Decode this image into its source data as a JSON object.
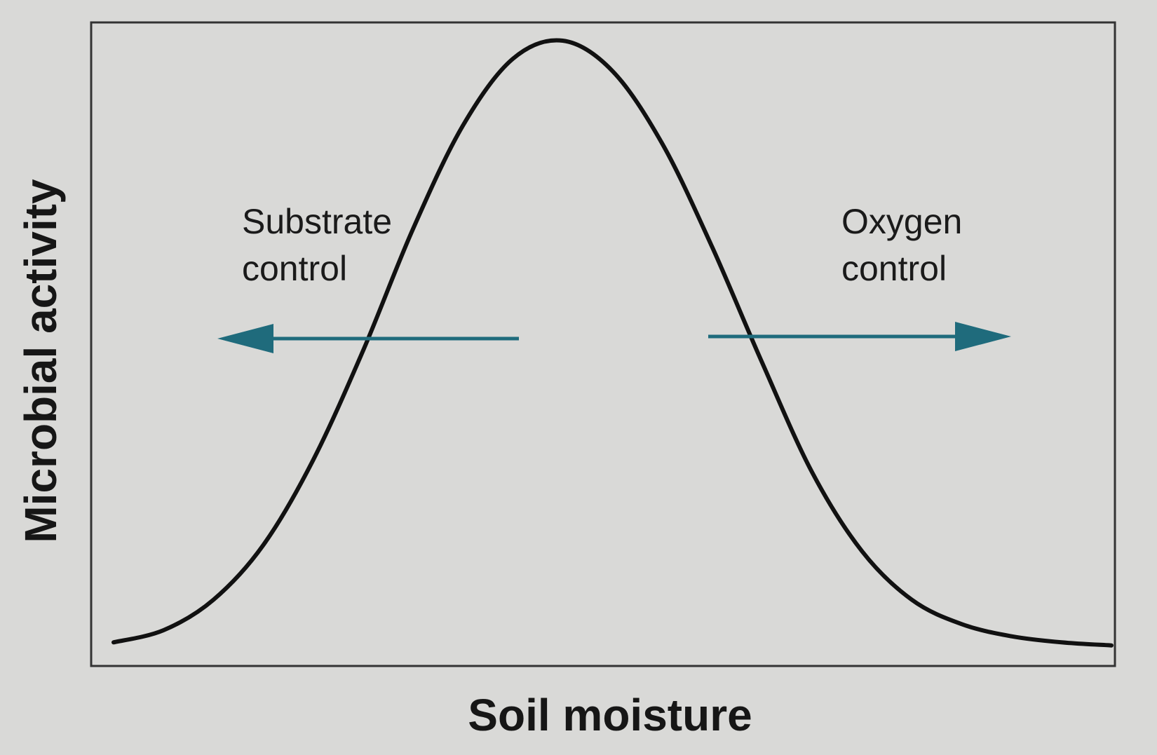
{
  "chart_data": {
    "type": "line",
    "xlabel": "Soil moisture",
    "ylabel": "Microbial activity",
    "series": [
      {
        "x": [
          0,
          5,
          10,
          15,
          20,
          25,
          30,
          35,
          40,
          45,
          50,
          55,
          60,
          65,
          70,
          75,
          80,
          85,
          90,
          95,
          100
        ],
        "y": [
          0.01,
          0.03,
          0.08,
          0.17,
          0.31,
          0.49,
          0.69,
          0.86,
          0.97,
          1.0,
          0.95,
          0.83,
          0.66,
          0.47,
          0.29,
          0.16,
          0.08,
          0.04,
          0.02,
          0.01,
          0.005
        ]
      }
    ],
    "annotations": [
      {
        "id": "substrate",
        "lines": [
          "Substrate",
          "control"
        ],
        "direction": "left",
        "color": "#1f6b7c"
      },
      {
        "id": "oxygen",
        "lines": [
          "Oxygen",
          "control"
        ],
        "direction": "right",
        "color": "#1f6b7c"
      }
    ],
    "grid": false,
    "legend": "none",
    "colors": {
      "curve": "#111111",
      "frame": "#333333",
      "arrow": "#1f6b7c"
    }
  }
}
